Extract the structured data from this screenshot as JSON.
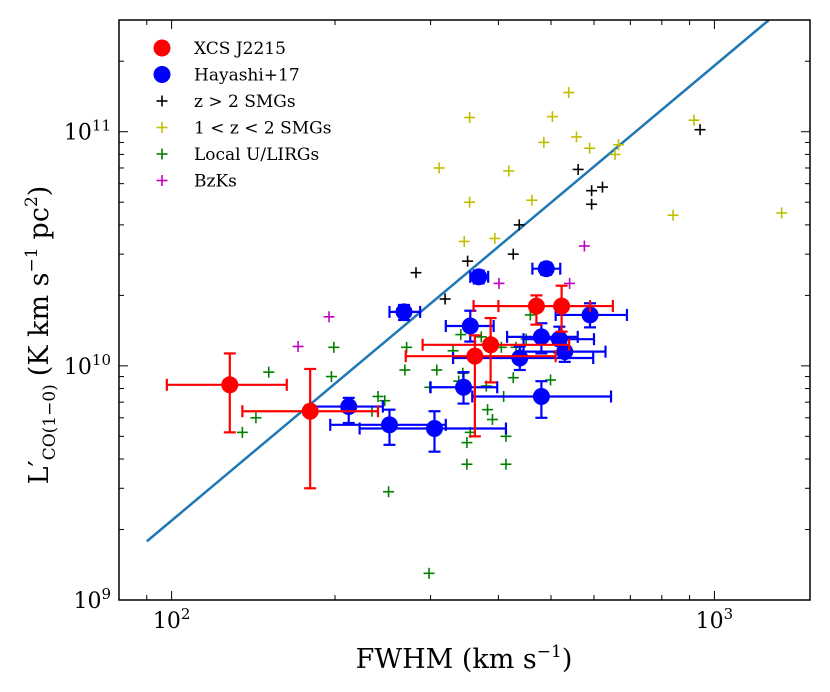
{
  "chart_data": {
    "type": "scatter",
    "title": "",
    "xlabel": "FWHM (km s",
    "xlabel_sup": "−1",
    "xlabel_end": ")",
    "ylabel_main": "L′",
    "ylabel_sub": "CO(1−0)",
    "ylabel_units": "(K km s",
    "ylabel_sup1": "−1",
    "ylabel_pc": "pc",
    "ylabel_sup2": "2",
    "ylabel_end": ")",
    "xscale": "log",
    "yscale": "log",
    "xlim": [
      80,
      1500
    ],
    "ylim": [
      1000000000.0,
      300000000000.0
    ],
    "x_ticks": [
      {
        "value": 100,
        "base": "10",
        "exp": "2"
      },
      {
        "value": 1000,
        "base": "10",
        "exp": "3"
      }
    ],
    "y_ticks": [
      {
        "value": 1000000000.0,
        "base": "10",
        "exp": "9"
      },
      {
        "value": 10000000000.0,
        "base": "10",
        "exp": "10"
      },
      {
        "value": 100000000000.0,
        "base": "10",
        "exp": "11"
      }
    ],
    "legend": {
      "position": "top-left",
      "entries": [
        {
          "label": "XCS J2215",
          "marker": "circle",
          "color": "#ff0000"
        },
        {
          "label": "Hayashi+17",
          "marker": "circle",
          "color": "#0000ff"
        },
        {
          "label": "z > 2 SMGs",
          "marker": "plus",
          "color": "#000000"
        },
        {
          "label": "1 < z < 2 SMGs",
          "marker": "plus",
          "color": "#bfbf00"
        },
        {
          "label": "Local U/LIRGs",
          "marker": "plus",
          "color": "#008000"
        },
        {
          "label": "BzKs",
          "marker": "plus",
          "color": "#bf00bf"
        }
      ]
    },
    "fit_line": {
      "color": "#1f77b4",
      "points": [
        [
          90,
          1780000000.0
        ],
        [
          1260,
          300000000000.0
        ]
      ]
    },
    "series": [
      {
        "name": "XCS J2215",
        "color": "#ff0000",
        "marker": "circle",
        "points": [
          {
            "x": 128,
            "y": 8300000000.0,
            "xerr": [
              98,
              163
            ],
            "yerr": [
              5200000000.0,
              11300000000.0
            ]
          },
          {
            "x": 180,
            "y": 6400000000.0,
            "xerr": [
              135,
              240
            ],
            "yerr": [
              3000000000.0,
              9700000000.0
            ]
          },
          {
            "x": 362,
            "y": 11000000000.0,
            "xerr": [
              270,
              510
            ],
            "yerr": [
              5000000000.0,
              13500000000.0
            ]
          },
          {
            "x": 387,
            "y": 12300000000.0,
            "xerr": [
              290,
              540
            ],
            "yerr": [
              8500000000.0,
              16000000000.0
            ]
          },
          {
            "x": 470,
            "y": 18000000000.0,
            "xerr": [
              360,
              590
            ],
            "yerr": [
              15000000000.0,
              20000000000.0
            ]
          },
          {
            "x": 523,
            "y": 18000000000.0,
            "xerr": [
              400,
              650
            ],
            "yerr": [
              14000000000.0,
              22000000000.0
            ]
          }
        ]
      },
      {
        "name": "Hayashi+17",
        "color": "#0000ff",
        "marker": "circle",
        "points": [
          {
            "x": 212,
            "y": 6700000000.0,
            "xerr": [
              180,
              245
            ],
            "yerr": [
              5700000000.0,
              7300000000.0
            ]
          },
          {
            "x": 252,
            "y": 5600000000.0,
            "xerr": [
              196,
              320
            ],
            "yerr": [
              4600000000.0,
              6500000000.0
            ]
          },
          {
            "x": 305,
            "y": 5400000000.0,
            "xerr": [
              222,
              413
            ],
            "yerr": [
              4300000000.0,
              6400000000.0
            ]
          },
          {
            "x": 268,
            "y": 17000000000.0,
            "xerr": [
              252,
              287
            ],
            "yerr": [
              15700000000.0,
              18200000000.0
            ]
          },
          {
            "x": 345,
            "y": 8100000000.0,
            "xerr": [
              300,
              398
            ],
            "yerr": [
              6900000000.0,
              9400000000.0
            ]
          },
          {
            "x": 355,
            "y": 14800000000.0,
            "xerr": [
              320,
              392
            ],
            "yerr": [
              12700000000.0,
              17200000000.0
            ]
          },
          {
            "x": 368,
            "y": 24000000000.0,
            "xerr": [
              355,
              383
            ],
            "yerr": [
              22500000000.0,
              25500000000.0
            ]
          },
          {
            "x": 438,
            "y": 10800000000.0,
            "xerr": [
              330,
              598
            ],
            "yerr": [
              9600000000.0,
              12100000000.0
            ]
          },
          {
            "x": 480,
            "y": 7400000000.0,
            "xerr": [
              358,
              645
            ],
            "yerr": [
              6000000000.0,
              8600000000.0
            ]
          },
          {
            "x": 490,
            "y": 26000000000.0,
            "xerr": [
              462,
              520
            ],
            "yerr": [
              24500000000.0,
              27500000000.0
            ]
          },
          {
            "x": 480,
            "y": 13300000000.0,
            "xerr": [
              415,
              560
            ],
            "yerr": [
              11300000000.0,
              15200000000.0
            ]
          },
          {
            "x": 518,
            "y": 13000000000.0,
            "xerr": [
              445,
              600
            ],
            "yerr": [
              11400000000.0,
              14700000000.0
            ]
          },
          {
            "x": 530,
            "y": 11500000000.0,
            "xerr": [
              445,
              630
            ],
            "yerr": [
              10400000000.0,
              13100000000.0
            ]
          },
          {
            "x": 590,
            "y": 16500000000.0,
            "xerr": [
              510,
              690
            ],
            "yerr": [
              14600000000.0,
              18500000000.0
            ]
          }
        ]
      },
      {
        "name": "z > 2 SMGs",
        "color": "#000000",
        "marker": "plus",
        "points": [
          [
            282,
            25000000000.0
          ],
          [
            319,
            19300000000.0
          ],
          [
            351,
            28000000000.0
          ],
          [
            426,
            30000000000.0
          ],
          [
            437,
            40000000000.0
          ],
          [
            561,
            69000000000.0
          ],
          [
            594,
            49000000000.0
          ],
          [
            594,
            56000000000.0
          ],
          [
            622,
            58000000000.0
          ],
          [
            941,
            102000000000.0
          ]
        ]
      },
      {
        "name": "1 < z < 2 SMGs",
        "color": "#bfbf00",
        "marker": "plus",
        "points": [
          [
            311,
            70000000000.0
          ],
          [
            346,
            34000000000.0
          ],
          [
            354,
            115000000000.0
          ],
          [
            354,
            50000000000.0
          ],
          [
            394,
            35000000000.0
          ],
          [
            418,
            68000000000.0
          ],
          [
            461,
            51000000000.0
          ],
          [
            485,
            90000000000.0
          ],
          [
            503,
            116000000000.0
          ],
          [
            539,
            147000000000.0
          ],
          [
            557,
            95000000000.0
          ],
          [
            589,
            85000000000.0
          ],
          [
            656,
            80000000000.0
          ],
          [
            666,
            88000000000.0
          ],
          [
            839,
            44000000000.0
          ],
          [
            917,
            112000000000.0
          ],
          [
            1330,
            45000000000.0
          ]
        ]
      },
      {
        "name": "Local U/LIRGs",
        "color": "#008000",
        "marker": "plus",
        "points": [
          [
            135,
            5200000000.0
          ],
          [
            143,
            6000000000.0
          ],
          [
            151,
            9400000000.0
          ],
          [
            180,
            6800000000.0
          ],
          [
            197,
            9000000000.0
          ],
          [
            199,
            12000000000.0
          ],
          [
            234,
            6400000000.0
          ],
          [
            240,
            7400000000.0
          ],
          [
            247,
            7100000000.0
          ],
          [
            251,
            2900000000.0
          ],
          [
            269,
            9600000000.0
          ],
          [
            271,
            12000000000.0
          ],
          [
            298,
            1300000000.0
          ],
          [
            299,
            8100000000.0
          ],
          [
            308,
            9600000000.0
          ],
          [
            330,
            11600000000.0
          ],
          [
            338,
            8600000000.0
          ],
          [
            341,
            13600000000.0
          ],
          [
            344,
            9300000000.0
          ],
          [
            350,
            3800000000.0
          ],
          [
            350,
            4700000000.0
          ],
          [
            355,
            5200000000.0
          ],
          [
            360,
            11200000000.0
          ],
          [
            372,
            13300000000.0
          ],
          [
            380,
            8200000000.0
          ],
          [
            382,
            6500000000.0
          ],
          [
            390,
            5900000000.0
          ],
          [
            405,
            12000000000.0
          ],
          [
            409,
            7400000000.0
          ],
          [
            413,
            3800000000.0
          ],
          [
            413,
            5000000000.0
          ],
          [
            426,
            8900000000.0
          ],
          [
            431,
            12000000000.0
          ],
          [
            450,
            13000000000.0
          ],
          [
            458,
            16500000000.0
          ],
          [
            499,
            8700000000.0
          ]
        ]
      },
      {
        "name": "BzKs",
        "color": "#bf00bf",
        "marker": "plus",
        "points": [
          [
            171,
            12100000000.0
          ],
          [
            195,
            16200000000.0
          ],
          [
            401,
            22500000000.0
          ],
          [
            541,
            22500000000.0
          ],
          [
            576,
            32500000000.0
          ]
        ]
      }
    ]
  }
}
